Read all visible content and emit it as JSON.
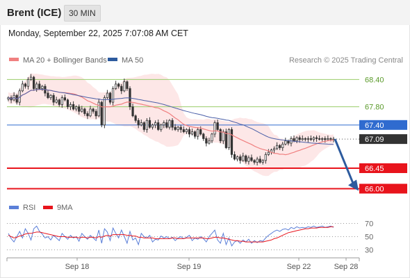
{
  "header": {
    "instrument": "Brent (ICE)",
    "timeframe": "30 MIN"
  },
  "timestamp": "Monday, September 22, 2025 7:07:08 AM CET",
  "copyright": "Research © 2025 Trading Central",
  "colors": {
    "ma20": "#f08080",
    "bollinger_fill": "#fde3e3",
    "ma50": "#4a5fa8",
    "resistance": "#9acd6a",
    "pivot": "#2f6bcf",
    "support": "#e8141c",
    "price_tag": "#333333",
    "rsi": "#5b7fd8",
    "rsi_ma": "#e8141c",
    "arrow": "#2d5b9e"
  },
  "chart_data": [
    {
      "type": "line",
      "title": "Brent (ICE)",
      "legend": [
        "MA 20 + Bollinger Bands",
        "MA 50"
      ],
      "legend_position": "top-left",
      "x_ticks": [
        "Sep 18",
        "Sep 19",
        "Sep 22",
        "Sep 28"
      ],
      "y_ticks": [
        68.4,
        67.8,
        67.4,
        67.09,
        66.45,
        66.0
      ],
      "ylim": [
        65.9,
        68.65
      ],
      "grid": false,
      "last_price": 67.09,
      "levels": [
        {
          "label": "68.40",
          "value": 68.4,
          "role": "resistance"
        },
        {
          "label": "67.80",
          "value": 67.8,
          "role": "resistance"
        },
        {
          "label": "67.40",
          "value": 67.4,
          "role": "pivot"
        },
        {
          "label": "67.09",
          "value": 67.09,
          "role": "last"
        },
        {
          "label": "66.45",
          "value": 66.45,
          "role": "support"
        },
        {
          "label": "66.00",
          "value": 66.0,
          "role": "support"
        }
      ],
      "series": [
        {
          "name": "Brent (ICE)",
          "type": "candlestick",
          "x": [
            0,
            1,
            2,
            3,
            4,
            5,
            6,
            7,
            8,
            9,
            10,
            11,
            12,
            13,
            14,
            15,
            16,
            17,
            18,
            19,
            20,
            21,
            22,
            23,
            24,
            25,
            26,
            27,
            28,
            29,
            30,
            31,
            32,
            33,
            34,
            35,
            36,
            37,
            38,
            39,
            40,
            41,
            42,
            43,
            44,
            45,
            46,
            47,
            48,
            49,
            50,
            51,
            52,
            53,
            54,
            55,
            56,
            57,
            58,
            59,
            60,
            61,
            62,
            63,
            64,
            65,
            66,
            67,
            68,
            69,
            70,
            71,
            72,
            73,
            74,
            75,
            76,
            77,
            78,
            79,
            80,
            81,
            82,
            83,
            84,
            85,
            86,
            87,
            88,
            89,
            90,
            91,
            92,
            93,
            94,
            95,
            96,
            97,
            98,
            99,
            100,
            101,
            102,
            103,
            104,
            105,
            106,
            107,
            108,
            109,
            110,
            111,
            112,
            113,
            114,
            115
          ],
          "close": [
            68.0,
            67.95,
            68.05,
            67.9,
            68.15,
            68.3,
            68.25,
            68.4,
            68.45,
            68.2,
            68.3,
            68.2,
            68.25,
            68.1,
            68.0,
            68.05,
            67.9,
            67.95,
            67.85,
            68.0,
            67.95,
            67.8,
            67.85,
            67.75,
            67.8,
            67.7,
            67.75,
            67.65,
            67.6,
            67.75,
            67.7,
            67.6,
            67.9,
            67.4,
            68.0,
            68.1,
            67.9,
            68.2,
            68.3,
            68.25,
            68.15,
            68.35,
            68.2,
            67.8,
            67.6,
            67.5,
            67.4,
            67.45,
            67.3,
            67.5,
            67.35,
            67.4,
            67.45,
            67.3,
            67.4,
            67.45,
            67.35,
            67.5,
            67.35,
            67.3,
            67.35,
            67.3,
            67.25,
            67.3,
            67.2,
            67.25,
            67.15,
            67.3,
            67.2,
            67.1,
            67.0,
            67.05,
            67.2,
            67.45,
            67.3,
            67.05,
            67.25,
            66.9,
            67.3,
            66.75,
            66.65,
            66.7,
            66.62,
            66.72,
            66.6,
            66.68,
            66.62,
            66.58,
            66.65,
            66.58,
            66.62,
            66.75,
            66.8,
            66.85,
            66.88,
            66.95,
            66.9,
            66.98,
            67.05,
            67.0,
            67.1,
            67.05,
            67.12,
            67.08,
            67.1,
            67.09,
            67.1,
            67.08,
            67.12,
            67.1,
            67.09,
            67.1,
            67.08,
            67.1,
            67.09,
            67.09
          ]
        },
        {
          "name": "MA 20",
          "values_note": ""
        },
        {
          "name": "MA 50",
          "values_note": ""
        }
      ],
      "forecast": {
        "from": 67.09,
        "to": 66.0
      }
    },
    {
      "type": "line",
      "legend": [
        "RSI",
        "9MA"
      ],
      "legend_position": "top-left",
      "y_ticks": [
        70,
        50,
        30
      ],
      "ylim": [
        20,
        80
      ],
      "series": [
        {
          "name": "RSI",
          "values": [
            55,
            47,
            42,
            50,
            58,
            48,
            62,
            55,
            45,
            62,
            66,
            58,
            54,
            48,
            50,
            45,
            52,
            48,
            44,
            55,
            50,
            46,
            52,
            48,
            50,
            43,
            55,
            50,
            46,
            52,
            48,
            44,
            60,
            40,
            62,
            57,
            44,
            63,
            55,
            48,
            60,
            50,
            40,
            58,
            45,
            48,
            38,
            55,
            50,
            48,
            52,
            42,
            46,
            45,
            51,
            48,
            50,
            47,
            49,
            44,
            48,
            50,
            47,
            49,
            52,
            44,
            48,
            46,
            50,
            47,
            42,
            50,
            55,
            60,
            45,
            40,
            55,
            38,
            48,
            36,
            42,
            44,
            40,
            45,
            42,
            46,
            40,
            44,
            41,
            44,
            43,
            48,
            52,
            55,
            58,
            60,
            58,
            61,
            62,
            60,
            64,
            62,
            65,
            63,
            64,
            63,
            65,
            64,
            66,
            64,
            65,
            66,
            64,
            65,
            66,
            64
          ]
        },
        {
          "name": "9MA",
          "values": [
            52,
            50,
            48,
            49,
            51,
            52,
            54,
            55,
            55,
            56,
            57,
            57,
            56,
            55,
            54,
            53,
            52,
            51,
            50,
            50,
            50,
            49,
            49,
            49,
            49,
            48,
            49,
            49,
            48,
            49,
            49,
            48,
            50,
            49,
            51,
            52,
            51,
            53,
            53,
            53,
            53,
            53,
            52,
            52,
            51,
            51,
            49,
            49,
            48,
            48,
            48,
            48,
            47,
            47,
            47,
            47,
            47,
            47,
            48,
            48,
            47,
            47,
            47,
            48,
            48,
            48,
            48,
            48,
            48,
            48,
            47,
            47,
            48,
            49,
            49,
            48,
            48,
            47,
            46,
            45,
            44,
            44,
            43,
            43,
            42,
            42,
            42,
            42,
            42,
            42,
            42,
            43,
            44,
            45,
            47,
            48,
            50,
            52,
            54,
            56,
            57,
            58,
            59,
            60,
            61,
            62,
            62,
            63,
            63,
            63,
            64,
            64,
            64,
            64,
            65,
            65
          ]
        }
      ]
    }
  ]
}
